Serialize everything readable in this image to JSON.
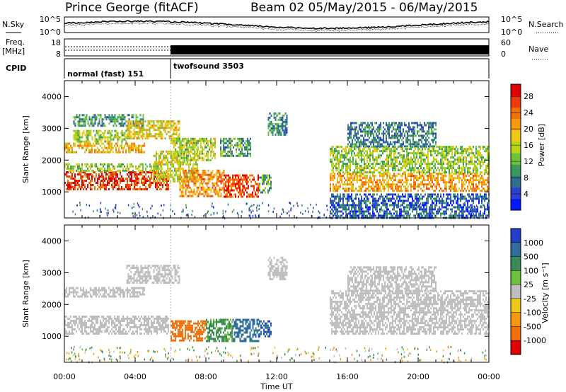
{
  "header": {
    "station": "Prince George (fitACF)",
    "beam_range": "Beam 02  05/May/2015 - 06/May/2015"
  },
  "top_panels": {
    "nsky_label": "N.Sky",
    "nsky_ticks": [
      "10^5",
      "10^0"
    ],
    "nsearch_label": "N.Search",
    "nsearch_ticks": [
      "10^5",
      "10^0"
    ],
    "freq_label_1": "Freq.",
    "freq_label_2": "[MHz]",
    "freq_ticks": [
      "18",
      "8"
    ],
    "nave_label": "Nave",
    "nave_ticks": [
      "60",
      "0"
    ],
    "cpid_label": "CPID",
    "cpid_segments": [
      {
        "name": "normal (fast) 151",
        "start_hour": 0,
        "end_hour": 6
      },
      {
        "name": "twofsound 3503",
        "start_hour": 6,
        "end_hour": 24
      }
    ]
  },
  "chart_data": [
    {
      "type": "heatmap",
      "quantity": "Power",
      "ylabel": "Slant Range [km]",
      "xlabel": "Time UT",
      "xlim": [
        0,
        24
      ],
      "ylim": [
        180,
        4500
      ],
      "x_ticks": [
        "00:00",
        "04:00",
        "08:00",
        "12:00",
        "16:00",
        "20:00",
        "00:00"
      ],
      "y_ticks": [
        1000,
        2000,
        3000,
        4000
      ],
      "colorbar_label": "Power [dB]",
      "colorbar_ticks": [
        "4",
        "8",
        "12",
        "16",
        "20",
        "24",
        "28"
      ],
      "colorbar_range": [
        0,
        31
      ],
      "colorbar_colors": [
        "#0018ff",
        "#2f3fd0",
        "#2f6e8e",
        "#3a9a5c",
        "#6cc23a",
        "#b8d414",
        "#f0c818",
        "#f59a10",
        "#f2700c",
        "#ec3a08",
        "#e00000"
      ],
      "echo_regions": [
        {
          "t0": 0.0,
          "t1": 5.9,
          "r0": 1100,
          "r1": 1650,
          "value": 27
        },
        {
          "t0": 0.0,
          "t1": 5.5,
          "r0": 1650,
          "r1": 1900,
          "value": 14
        },
        {
          "t0": 0.0,
          "t1": 4.5,
          "r0": 2250,
          "r1": 2550,
          "value": 20
        },
        {
          "t0": 0.5,
          "t1": 3.5,
          "r0": 2600,
          "r1": 2950,
          "value": 14
        },
        {
          "t0": 0.5,
          "t1": 4.5,
          "r0": 3050,
          "r1": 3450,
          "value": 9
        },
        {
          "t0": 3.5,
          "t1": 6.5,
          "r0": 2650,
          "r1": 3250,
          "value": 18
        },
        {
          "t0": 5.0,
          "t1": 7.5,
          "r0": 1300,
          "r1": 2300,
          "value": 16
        },
        {
          "t0": 6.0,
          "t1": 8.5,
          "r0": 2000,
          "r1": 2700,
          "value": 15
        },
        {
          "t0": 6.5,
          "t1": 9.0,
          "r0": 850,
          "r1": 1700,
          "value": 22
        },
        {
          "t0": 9.0,
          "t1": 11.0,
          "r0": 850,
          "r1": 1550,
          "value": 26
        },
        {
          "t0": 11.0,
          "t1": 11.7,
          "r0": 1000,
          "r1": 1550,
          "value": 12
        },
        {
          "t0": 8.8,
          "t1": 10.5,
          "r0": 2100,
          "r1": 2700,
          "value": 10
        },
        {
          "t0": 11.5,
          "t1": 12.6,
          "r0": 2800,
          "r1": 3500,
          "value": 9
        },
        {
          "t0": 15.0,
          "t1": 24.0,
          "r0": 1050,
          "r1": 1600,
          "value": 21
        },
        {
          "t0": 15.0,
          "t1": 24.0,
          "r0": 1600,
          "r1": 2450,
          "value": 14
        },
        {
          "t0": 16.0,
          "t1": 21.0,
          "r0": 2450,
          "r1": 3200,
          "value": 8
        },
        {
          "t0": 15.0,
          "t1": 24.0,
          "r0": 200,
          "r1": 950,
          "value": 6
        }
      ]
    },
    {
      "type": "heatmap",
      "quantity": "Velocity",
      "ylabel": "Slant Range [km]",
      "xlabel": "Time UT",
      "xlim": [
        0,
        24
      ],
      "ylim": [
        180,
        4500
      ],
      "x_ticks": [
        "00:00",
        "04:00",
        "08:00",
        "12:00",
        "16:00",
        "20:00",
        "00:00"
      ],
      "y_ticks": [
        1000,
        2000,
        3000,
        4000
      ],
      "colorbar_label": "Velocity [m s⁻¹]",
      "colorbar_ticks": [
        "1000",
        "500",
        "100",
        "25",
        "-25",
        "-100",
        "-500",
        "-1000"
      ],
      "colorbar_colors": [
        "#2040c8",
        "#2f6e9a",
        "#3a8a5a",
        "#6cc23a",
        "#bebebe",
        "#f0c818",
        "#f59a10",
        "#f2700c",
        "#e00000"
      ],
      "echo_regions": [
        {
          "t0": 0.0,
          "t1": 5.9,
          "r0": 1100,
          "r1": 1650,
          "value": 0
        },
        {
          "t0": 0.0,
          "t1": 4.5,
          "r0": 2250,
          "r1": 2550,
          "value": 0
        },
        {
          "t0": 3.5,
          "t1": 6.5,
          "r0": 2650,
          "r1": 3250,
          "value": 0
        },
        {
          "t0": 6.0,
          "t1": 8.0,
          "r0": 850,
          "r1": 1500,
          "value": -600
        },
        {
          "t0": 8.0,
          "t1": 9.5,
          "r0": 850,
          "r1": 1550,
          "value": 80
        },
        {
          "t0": 9.5,
          "t1": 11.0,
          "r0": 850,
          "r1": 1550,
          "value": 400
        },
        {
          "t0": 11.0,
          "t1": 11.7,
          "r0": 1000,
          "r1": 1500,
          "value": 700
        },
        {
          "t0": 11.5,
          "t1": 12.6,
          "r0": 2800,
          "r1": 3500,
          "value": 0
        },
        {
          "t0": 15.0,
          "t1": 24.0,
          "r0": 1050,
          "r1": 2450,
          "value": 0
        },
        {
          "t0": 16.0,
          "t1": 21.0,
          "r0": 2450,
          "r1": 3200,
          "value": 0
        }
      ]
    }
  ]
}
